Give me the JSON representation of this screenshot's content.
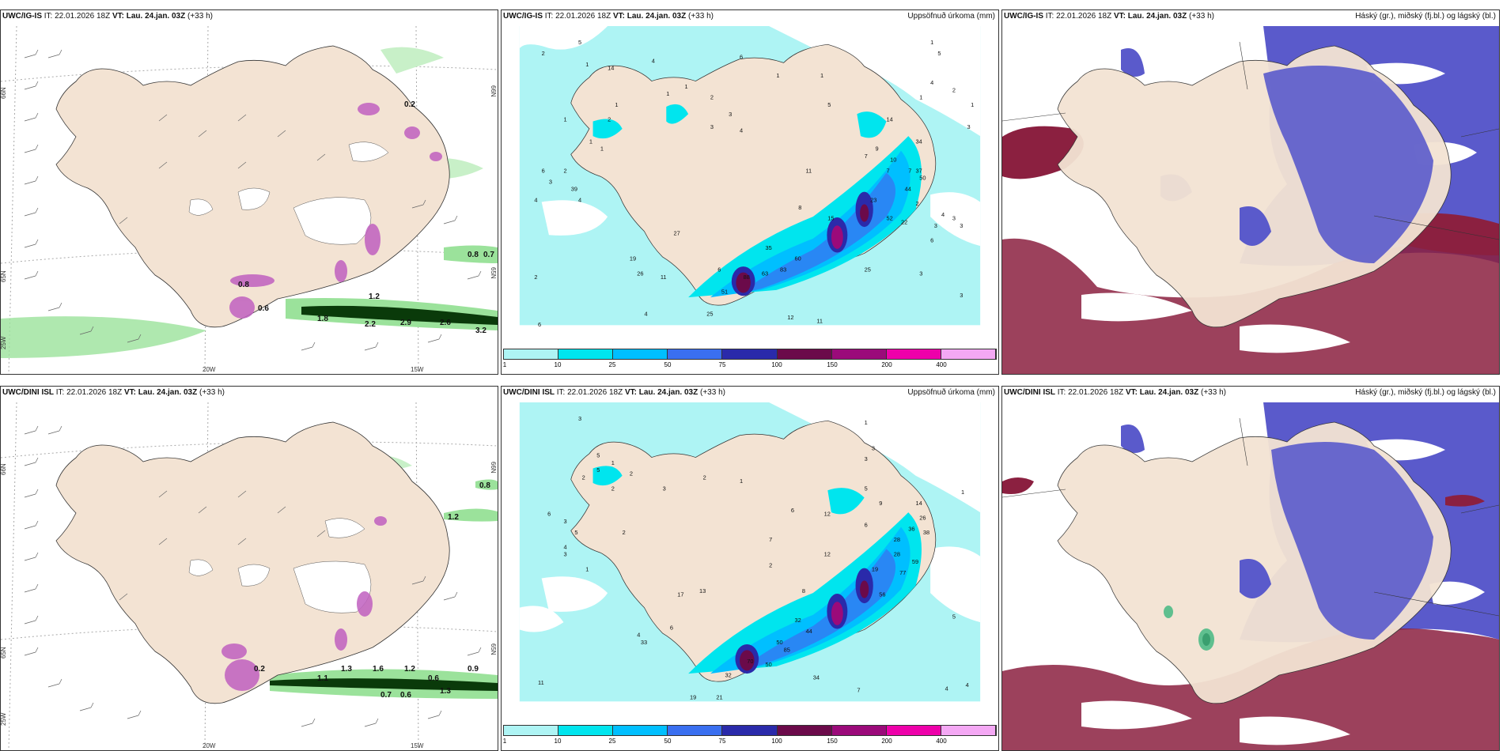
{
  "panels": [
    {
      "model": "UWC/IG-IS",
      "it_label": "IT:",
      "it_value": "22.01.2026 18Z",
      "vt_label": "VT:",
      "vt_value": "Lau. 24.jan. 03Z",
      "lead": "(+33 h)",
      "right_title": "",
      "wind_values": [
        "0.2",
        "0.6",
        "1.2",
        "1.8",
        "2.2",
        "2.6",
        "2.9",
        "3.2",
        "0.8",
        "0.7",
        "0.8"
      ],
      "axis_labels": [
        "20W",
        "15W",
        "66N",
        "65N",
        "25W",
        "66N",
        "65N"
      ]
    },
    {
      "model": "UWC/IG-IS",
      "it_label": "IT:",
      "it_value": "22.01.2026 18Z",
      "vt_label": "VT:",
      "vt_value": "Lau. 24.jan. 03Z",
      "lead": "(+33 h)",
      "right_title": "Uppsöfnuð úrkoma (mm)",
      "precip_values": [
        "2",
        "5",
        "1",
        "14",
        "1",
        "1",
        "1",
        "1",
        "3",
        "1",
        "4",
        "2",
        "1",
        "2",
        "1",
        "3",
        "4",
        "3",
        "2",
        "6",
        "4",
        "14",
        "1",
        "4",
        "5",
        "2",
        "39",
        "3",
        "3",
        "6",
        "4",
        "11",
        "7",
        "9",
        "34",
        "2",
        "7",
        "27",
        "7",
        "10",
        "37",
        "8",
        "19",
        "35",
        "50",
        "23",
        "44",
        "26",
        "11",
        "60",
        "52",
        "3",
        "15",
        "63",
        "88",
        "83",
        "25",
        "22",
        "3",
        "3",
        "6",
        "4",
        "6",
        "51",
        "25",
        "4",
        "12",
        "11",
        "1",
        "1",
        "6",
        "2",
        "5",
        "3",
        "1"
      ],
      "legend_ticks": [
        "1",
        "10",
        "25",
        "50",
        "75",
        "100",
        "150",
        "200",
        "400"
      ]
    },
    {
      "model": "UWC/IG-IS",
      "it_label": "IT:",
      "it_value": "22.01.2026 18Z",
      "vt_label": "VT:",
      "vt_value": "Lau. 24.jan. 03Z",
      "lead": "(+33 h)",
      "right_title": "Háský (gr.), miðský (fj.bl.) og lágský (bl.)"
    },
    {
      "model": "UWC/DINI ISL",
      "it_label": "IT:",
      "it_value": "22.01.2026 18Z",
      "vt_label": "VT:",
      "vt_value": "Lau. 24.jan. 03Z",
      "lead": "(+33 h)",
      "right_title": "",
      "wind_values": [
        "0.8",
        "1.2",
        "0.2",
        "1.3",
        "1.6",
        "1.2",
        "0.9",
        "0.6",
        "0.7",
        "0.6",
        "1.1",
        "1.3"
      ],
      "axis_labels": [
        "20W",
        "15W",
        "66N",
        "65N",
        "25W",
        "66N",
        "65N"
      ]
    },
    {
      "model": "UWC/DINI ISL",
      "it_label": "IT:",
      "it_value": "22.01.2026 18Z",
      "vt_label": "VT:",
      "vt_value": "Lau. 24.jan. 03Z",
      "lead": "(+33 h)",
      "right_title": "Uppsöfnuð úrkoma (mm)",
      "precip_values": [
        "3",
        "5",
        "2",
        "5",
        "1",
        "2",
        "2",
        "1",
        "3",
        "4",
        "3",
        "6",
        "4",
        "5",
        "2",
        "3",
        "1",
        "2",
        "1",
        "6",
        "12",
        "14",
        "5",
        "3",
        "9",
        "28",
        "3",
        "26",
        "38",
        "36",
        "7",
        "8",
        "28",
        "59",
        "19",
        "77",
        "13",
        "17",
        "2",
        "6",
        "12",
        "32",
        "44",
        "50",
        "56",
        "6",
        "33",
        "32",
        "85",
        "50",
        "34",
        "70",
        "11",
        "5",
        "4",
        "4",
        "7",
        "21",
        "19",
        "1"
      ],
      "legend_ticks": [
        "1",
        "10",
        "25",
        "50",
        "75",
        "100",
        "150",
        "200",
        "400"
      ]
    },
    {
      "model": "UWC/DINI ISL",
      "it_label": "IT:",
      "it_value": "22.01.2026 18Z",
      "vt_label": "VT:",
      "vt_value": "Lau. 24.jan. 03Z",
      "lead": "(+33 h)",
      "right_title": "Háský (gr.), miðský (fj.bl.) og lágský (bl.)"
    }
  ],
  "colors": {
    "land": "#f3e3d3",
    "sea_precip": "#aef4f4",
    "p10": "#00e5ee",
    "p25": "#00bfff",
    "p50": "#3a6ff0",
    "p75": "#2a2aaa",
    "p100": "#6b0a4a",
    "p150": "#9b0a7a",
    "p200": "#ee00aa",
    "p400": "#f4a8f4",
    "mid_cloud": "#5a5acb",
    "low_cloud": "#8b2040",
    "wind_green": "#9be29b",
    "wind_dark": "#0a3a0a"
  }
}
